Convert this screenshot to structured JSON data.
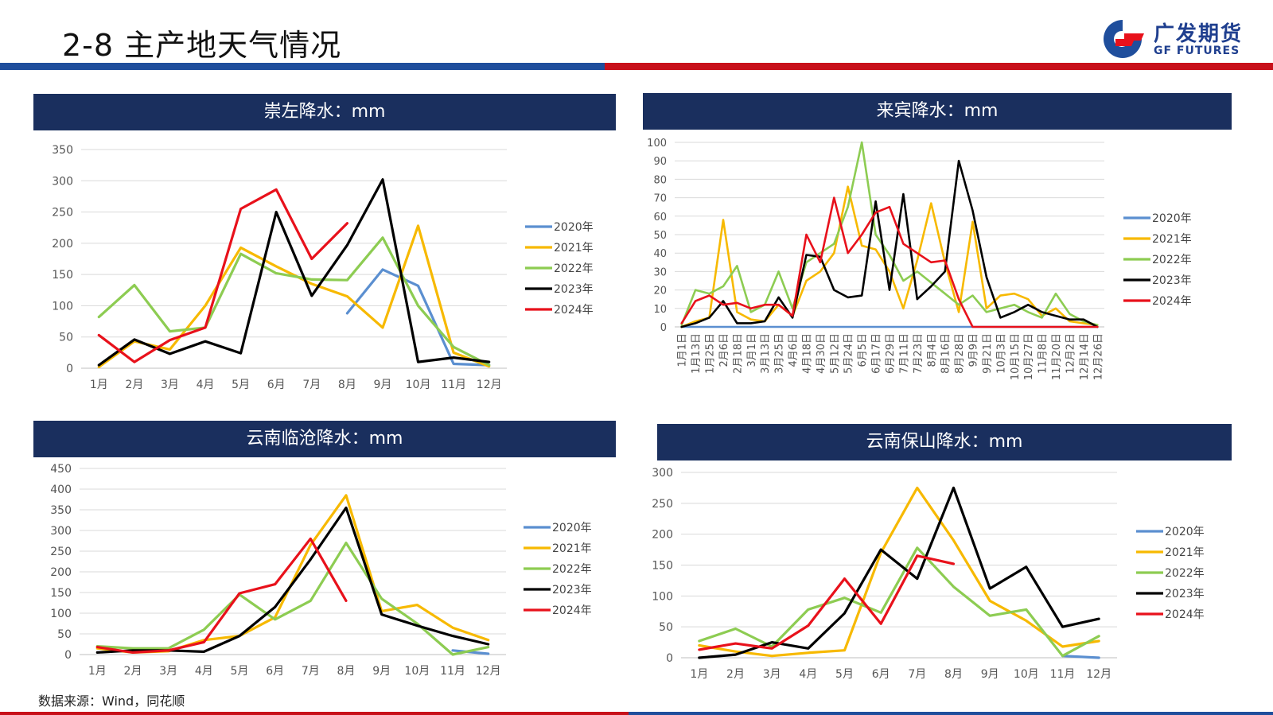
{
  "page": {
    "title": "2-8 主产地天气情况",
    "source": "数据来源：Wind，同花顺"
  },
  "logo": {
    "cn": "广发期货",
    "en": "GF FUTURES"
  },
  "colors": {
    "2020年": "#5b8fd0",
    "2021年": "#f7b900",
    "2022年": "#8dcc52",
    "2023年": "#000000",
    "2024年": "#e8111b"
  },
  "chart_data": [
    {
      "type": "line",
      "title": "崇左降水：mm",
      "categories": [
        "1月",
        "2月",
        "3月",
        "4月",
        "5月",
        "6月",
        "7月",
        "8月",
        "9月",
        "10月",
        "11月",
        "12月"
      ],
      "ylim": [
        0,
        350
      ],
      "yticks": [
        0,
        50,
        100,
        150,
        200,
        250,
        300,
        350
      ],
      "legend_position": "right",
      "series": [
        {
          "name": "2020年",
          "values": [
            null,
            null,
            null,
            null,
            null,
            null,
            null,
            88,
            158,
            132,
            7,
            5
          ]
        },
        {
          "name": "2021年",
          "values": [
            2,
            43,
            30,
            100,
            193,
            163,
            135,
            115,
            65,
            228,
            25,
            3
          ]
        },
        {
          "name": "2022年",
          "values": [
            82,
            133,
            59,
            65,
            183,
            152,
            142,
            141,
            209,
            100,
            34,
            5
          ]
        },
        {
          "name": "2023年",
          "values": [
            5,
            46,
            23,
            43,
            24,
            250,
            116,
            197,
            302,
            10,
            17,
            10
          ]
        },
        {
          "name": "2024年",
          "values": [
            53,
            10,
            45,
            65,
            255,
            286,
            175,
            232,
            null,
            null,
            null,
            null
          ]
        }
      ]
    },
    {
      "type": "line",
      "title": "来宾降水：mm",
      "categories": [
        "1月1日",
        "1月13日",
        "1月25日",
        "2月6日",
        "2月18日",
        "3月1日",
        "3月13日",
        "3月25日",
        "4月6日",
        "4月18日",
        "4月30日",
        "5月12日",
        "5月24日",
        "6月5日",
        "6月17日",
        "6月29日",
        "7月11日",
        "7月23日",
        "8月4日",
        "8月16日",
        "8月28日",
        "9月9日",
        "9月21日",
        "10月3日",
        "10月15日",
        "10月27日",
        "11月8日",
        "11月20日",
        "12月2日",
        "12月14日",
        "12月26日"
      ],
      "ylim": [
        0,
        100
      ],
      "yticks": [
        0,
        10,
        20,
        30,
        40,
        50,
        60,
        70,
        80,
        90,
        100
      ],
      "legend_position": "right",
      "series": [
        {
          "name": "2020年",
          "values": [
            0,
            0,
            0,
            0,
            0,
            0,
            0,
            0,
            0,
            0,
            0,
            0,
            0,
            0,
            0,
            0,
            0,
            0,
            0,
            0,
            0,
            0,
            0,
            0,
            0,
            0,
            0,
            0,
            0,
            0,
            0
          ]
        },
        {
          "name": "2021年",
          "values": [
            0,
            3,
            5,
            58,
            8,
            4,
            3,
            12,
            6,
            25,
            30,
            40,
            76,
            44,
            42,
            30,
            10,
            36,
            67,
            35,
            8,
            57,
            10,
            17,
            18,
            15,
            6,
            10,
            3,
            2,
            1
          ]
        },
        {
          "name": "2022年",
          "values": [
            1,
            20,
            18,
            22,
            33,
            8,
            12,
            30,
            10,
            35,
            40,
            45,
            65,
            100,
            50,
            39,
            25,
            30,
            24,
            18,
            12,
            17,
            8,
            10,
            12,
            8,
            5,
            18,
            7,
            3,
            1
          ]
        },
        {
          "name": "2023年",
          "values": [
            0,
            2,
            5,
            14,
            2,
            2,
            3,
            16,
            5,
            39,
            38,
            20,
            16,
            17,
            68,
            20,
            72,
            15,
            22,
            30,
            90,
            63,
            27,
            5,
            8,
            12,
            8,
            6,
            4,
            4,
            0
          ]
        },
        {
          "name": "2024年",
          "values": [
            2,
            14,
            17,
            12,
            13,
            10,
            12,
            12,
            6,
            50,
            35,
            70,
            40,
            50,
            62,
            65,
            45,
            40,
            35,
            36,
            15,
            0,
            0,
            0,
            0,
            0,
            0,
            0,
            0,
            0,
            0
          ]
        }
      ]
    },
    {
      "type": "line",
      "title": "云南临沧降水：mm",
      "categories": [
        "1月",
        "2月",
        "3月",
        "4月",
        "5月",
        "6月",
        "7月",
        "8月",
        "9月",
        "10月",
        "11月",
        "12月"
      ],
      "ylim": [
        0,
        450
      ],
      "yticks": [
        0,
        50,
        100,
        150,
        200,
        250,
        300,
        350,
        400,
        450
      ],
      "legend_position": "right",
      "series": [
        {
          "name": "2020年",
          "values": [
            null,
            null,
            null,
            null,
            null,
            null,
            null,
            null,
            null,
            null,
            10,
            2
          ]
        },
        {
          "name": "2021年",
          "values": [
            15,
            5,
            8,
            35,
            45,
            90,
            265,
            385,
            105,
            120,
            65,
            35
          ]
        },
        {
          "name": "2022年",
          "values": [
            20,
            15,
            15,
            60,
            145,
            85,
            130,
            270,
            135,
            75,
            0,
            18
          ]
        },
        {
          "name": "2023年",
          "values": [
            5,
            10,
            10,
            7,
            45,
            115,
            230,
            355,
            97,
            70,
            45,
            25
          ]
        },
        {
          "name": "2024年",
          "values": [
            18,
            5,
            10,
            30,
            148,
            170,
            280,
            130,
            null,
            null,
            null,
            null
          ]
        }
      ]
    },
    {
      "type": "line",
      "title": "云南保山降水：mm",
      "categories": [
        "1月",
        "2月",
        "3月",
        "4月",
        "5月",
        "6月",
        "7月",
        "8月",
        "9月",
        "10月",
        "11月",
        "12月"
      ],
      "ylim": [
        0,
        300
      ],
      "yticks": [
        0,
        50,
        100,
        150,
        200,
        250,
        300
      ],
      "legend_position": "right",
      "series": [
        {
          "name": "2020年",
          "values": [
            null,
            null,
            null,
            null,
            null,
            null,
            null,
            null,
            null,
            null,
            3,
            0
          ]
        },
        {
          "name": "2021年",
          "values": [
            20,
            10,
            3,
            8,
            12,
            170,
            275,
            190,
            92,
            60,
            18,
            27
          ]
        },
        {
          "name": "2022年",
          "values": [
            27,
            47,
            18,
            78,
            97,
            73,
            178,
            115,
            68,
            78,
            3,
            35
          ]
        },
        {
          "name": "2023年",
          "values": [
            0,
            5,
            25,
            15,
            72,
            175,
            128,
            275,
            112,
            147,
            50,
            63
          ]
        },
        {
          "name": "2024年",
          "values": [
            13,
            23,
            15,
            52,
            128,
            55,
            165,
            152,
            null,
            null,
            null,
            null
          ]
        }
      ]
    }
  ]
}
